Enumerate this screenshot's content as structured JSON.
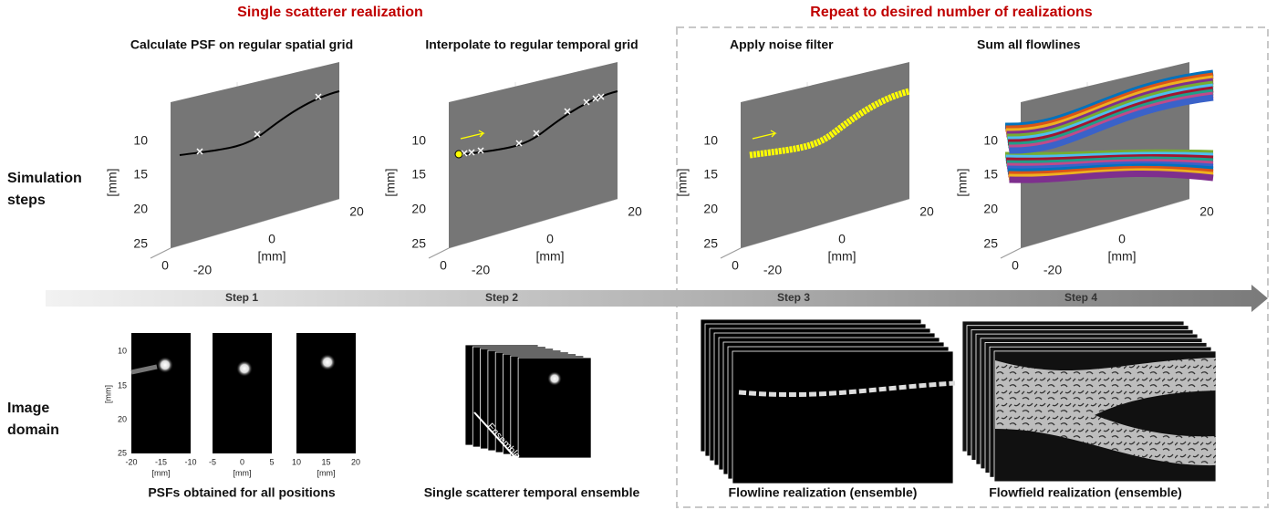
{
  "headers": [
    "Single scatterer realization",
    "Repeat to desired number of realizations"
  ],
  "row_labels": [
    [
      "Simulation",
      "steps"
    ],
    [
      "Image",
      "domain"
    ]
  ],
  "panels": [
    {
      "title": "Calculate PSF on regular spatial grid",
      "y_label": "[mm]",
      "y_ticks": [
        "10",
        "15",
        "20",
        "25"
      ],
      "x_ticks": [
        "0",
        "20"
      ],
      "x_label": "[mm]",
      "depth_ticks": [
        "0",
        "-20"
      ]
    },
    {
      "title": "Interpolate to regular temporal grid",
      "y_label": "[mm]",
      "y_ticks": [
        "10",
        "15",
        "20",
        "25"
      ],
      "x_ticks": [
        "0",
        "20"
      ],
      "x_label": "[mm]",
      "depth_ticks": [
        "0",
        "-20"
      ]
    },
    {
      "title": "Apply noise filter",
      "y_label": "[mm]",
      "y_ticks": [
        "10",
        "15",
        "20",
        "25"
      ],
      "x_ticks": [
        "0",
        "20"
      ],
      "x_label": "[mm]",
      "depth_ticks": [
        "0",
        "-20"
      ]
    },
    {
      "title": "Sum all flowlines",
      "y_label": "[mm]",
      "y_ticks": [
        "10",
        "15",
        "20",
        "25"
      ],
      "x_ticks": [
        "0",
        "20"
      ],
      "x_label": "[mm]",
      "depth_ticks": [
        "0",
        "-20"
      ]
    }
  ],
  "steps": [
    "Step 1",
    "Step 2",
    "Step 3",
    "Step 4"
  ],
  "psf": {
    "y_label": "[mm]",
    "y_ticks": [
      "10",
      "15",
      "20",
      "25"
    ],
    "images": [
      {
        "x_ticks": [
          "-20",
          "-15",
          "-10"
        ],
        "x_label": "[mm]"
      },
      {
        "x_ticks": [
          "-5",
          "0",
          "5"
        ],
        "x_label": "[mm]"
      },
      {
        "x_ticks": [
          "10",
          "15",
          "20"
        ],
        "x_label": "[mm]"
      }
    ]
  },
  "ensemble_label": "Ensemble",
  "captions": [
    "PSFs obtained for all positions",
    "Single scatterer temporal ensemble",
    "Flowline realization (ensemble)",
    "Flowfield realization (ensemble)"
  ]
}
